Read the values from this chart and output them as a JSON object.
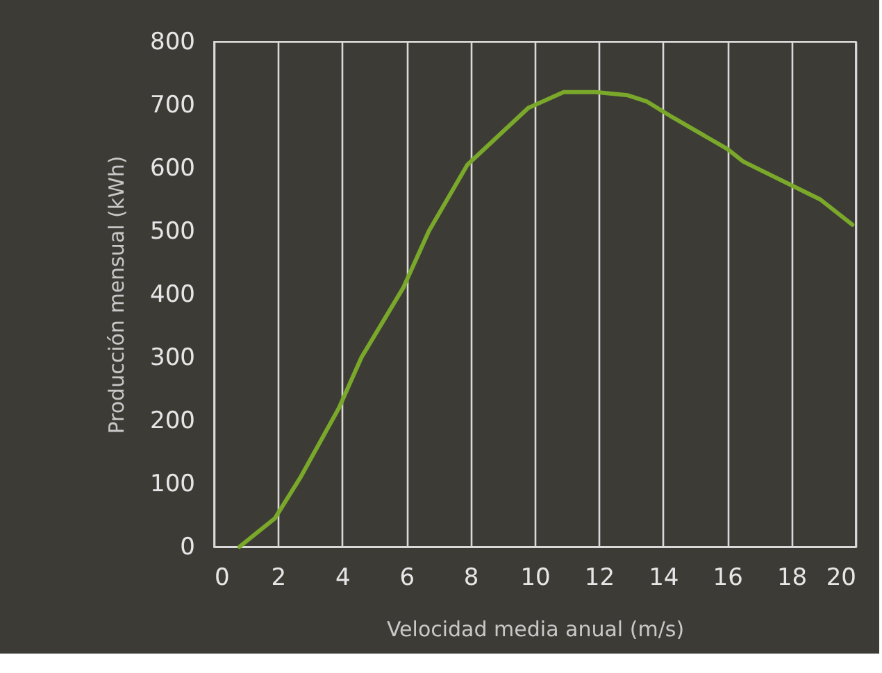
{
  "chart_data": {
    "type": "line",
    "xlabel": "Velocidad media anual (m/s)",
    "ylabel": "Producción mensual (kWh)",
    "x": [
      0.8,
      1.9,
      2.7,
      3.9,
      4.6,
      5.9,
      6.7,
      7.9,
      9.8,
      10.9,
      11.9,
      12.9,
      13.5,
      14.3,
      16.0,
      16.5,
      17.9,
      18.9,
      19.9
    ],
    "series": [
      {
        "color": "#7aa82a",
        "values": [
          0,
          45,
          110,
          220,
          300,
          410,
          500,
          605,
          695,
          720,
          720,
          715,
          705,
          680,
          630,
          610,
          575,
          550,
          510
        ]
      }
    ],
    "xlim": [
      0,
      20
    ],
    "xticks": [
      0,
      2,
      4,
      6,
      8,
      10,
      12,
      14,
      16,
      18,
      20
    ],
    "ylim": [
      0,
      800
    ],
    "yticks": [
      0,
      100,
      200,
      300,
      400,
      500,
      600,
      700,
      800
    ],
    "grid": "x",
    "marker": "none",
    "line_style": "solid",
    "legend": false
  }
}
